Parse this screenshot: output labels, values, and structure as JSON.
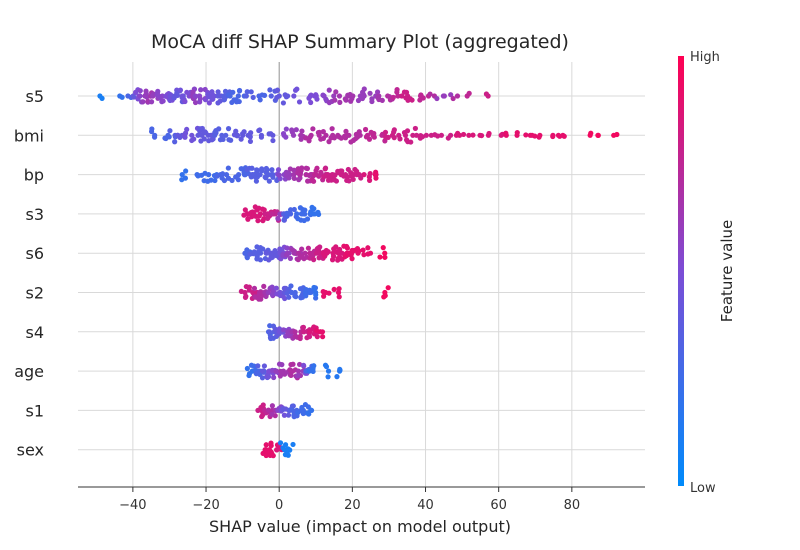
{
  "chart_data": {
    "type": "scatter",
    "subtype": "shap-beeswarm",
    "title": "MoCA diff  SHAP Summary Plot (aggregated)",
    "xlabel": "SHAP value (impact on model output)",
    "ylabel": "",
    "xlim": [
      -55,
      100
    ],
    "xticks": [
      "−40",
      "−20",
      "0",
      "20",
      "40",
      "60",
      "80"
    ],
    "xtick_values": [
      -40,
      -20,
      0,
      20,
      40,
      60,
      80
    ],
    "grid": true,
    "colorbar": {
      "label": "Feature value",
      "high_label": "High",
      "low_label": "Low",
      "low_color": "#008bfb",
      "mid_color": "#7c4dd6",
      "high_color": "#ff0052"
    },
    "features": [
      {
        "name": "s5",
        "points": [
          [
            -48,
            0.1
          ],
          [
            -43,
            0.2
          ],
          [
            -41,
            0.3
          ],
          [
            -40,
            0.4
          ],
          [
            -39,
            0.5
          ],
          [
            -38,
            0.55
          ],
          [
            -37,
            0.6
          ],
          [
            -36,
            0.6
          ],
          [
            -35,
            0.65
          ],
          [
            -34,
            0.6
          ],
          [
            -33,
            0.55
          ],
          [
            -32,
            0.55
          ],
          [
            -31,
            0.5
          ],
          [
            -30,
            0.5
          ],
          [
            -29,
            0.45
          ],
          [
            -28,
            0.4
          ],
          [
            -27,
            0.4
          ],
          [
            -26,
            0.45
          ],
          [
            -25,
            0.5
          ],
          [
            -24,
            0.55
          ],
          [
            -23,
            0.6
          ],
          [
            -22,
            0.55
          ],
          [
            -21,
            0.55
          ],
          [
            -20,
            0.5
          ],
          [
            -19,
            0.45
          ],
          [
            -18,
            0.45
          ],
          [
            -17,
            0.4
          ],
          [
            -16,
            0.4
          ],
          [
            -15,
            0.35
          ],
          [
            -14,
            0.35
          ],
          [
            -13,
            0.3
          ],
          [
            -12,
            0.3
          ],
          [
            -10,
            0.3
          ],
          [
            -8,
            0.35
          ],
          [
            -5,
            0.3
          ],
          [
            -2,
            0.35
          ],
          [
            0,
            0.4
          ],
          [
            2,
            0.4
          ],
          [
            5,
            0.45
          ],
          [
            8,
            0.5
          ],
          [
            10,
            0.5
          ],
          [
            12,
            0.55
          ],
          [
            14,
            0.6
          ],
          [
            16,
            0.65
          ],
          [
            18,
            0.65
          ],
          [
            20,
            0.65
          ],
          [
            22,
            0.6
          ],
          [
            24,
            0.6
          ],
          [
            26,
            0.6
          ],
          [
            28,
            0.65
          ],
          [
            30,
            0.7
          ],
          [
            32,
            0.75
          ],
          [
            34,
            0.8
          ],
          [
            36,
            0.8
          ],
          [
            38,
            0.75
          ],
          [
            40,
            0.75
          ],
          [
            42,
            0.7
          ],
          [
            44,
            0.6
          ],
          [
            46,
            0.6
          ],
          [
            48,
            0.7
          ],
          [
            52,
            0.75
          ],
          [
            57,
            0.8
          ]
        ]
      },
      {
        "name": "bmi",
        "points": [
          [
            -34,
            0.3
          ],
          [
            -31,
            0.3
          ],
          [
            -29,
            0.35
          ],
          [
            -27,
            0.4
          ],
          [
            -25,
            0.45
          ],
          [
            -23,
            0.45
          ],
          [
            -22,
            0.4
          ],
          [
            -21,
            0.4
          ],
          [
            -20,
            0.4
          ],
          [
            -19,
            0.4
          ],
          [
            -18,
            0.35
          ],
          [
            -16,
            0.35
          ],
          [
            -14,
            0.35
          ],
          [
            -12,
            0.4
          ],
          [
            -10,
            0.4
          ],
          [
            -8,
            0.4
          ],
          [
            -5,
            0.4
          ],
          [
            -2,
            0.4
          ],
          [
            2,
            0.55
          ],
          [
            4,
            0.6
          ],
          [
            6,
            0.65
          ],
          [
            8,
            0.7
          ],
          [
            10,
            0.7
          ],
          [
            12,
            0.7
          ],
          [
            14,
            0.7
          ],
          [
            16,
            0.7
          ],
          [
            18,
            0.7
          ],
          [
            20,
            0.7
          ],
          [
            22,
            0.7
          ],
          [
            24,
            0.75
          ],
          [
            26,
            0.75
          ],
          [
            28,
            0.75
          ],
          [
            30,
            0.8
          ],
          [
            32,
            0.8
          ],
          [
            34,
            0.8
          ],
          [
            36,
            0.8
          ],
          [
            38,
            0.8
          ],
          [
            40,
            0.8
          ],
          [
            42,
            0.8
          ],
          [
            44,
            0.8
          ],
          [
            46,
            0.8
          ],
          [
            48,
            0.85
          ],
          [
            50,
            0.85
          ],
          [
            52,
            0.85
          ],
          [
            55,
            0.85
          ],
          [
            58,
            0.85
          ],
          [
            60,
            0.85
          ],
          [
            62,
            0.9
          ],
          [
            65,
            0.9
          ],
          [
            68,
            0.9
          ],
          [
            70,
            0.9
          ],
          [
            72,
            0.9
          ],
          [
            74,
            0.9
          ],
          [
            76,
            0.9
          ],
          [
            78,
            0.9
          ],
          [
            86,
            0.95
          ],
          [
            88,
            0.95
          ],
          [
            92,
            0.95
          ]
        ]
      },
      {
        "name": "bp",
        "points": [
          [
            -26,
            0.2
          ],
          [
            -22,
            0.25
          ],
          [
            -20,
            0.25
          ],
          [
            -18,
            0.25
          ],
          [
            -16,
            0.3
          ],
          [
            -14,
            0.3
          ],
          [
            -12,
            0.3
          ],
          [
            -10,
            0.3
          ],
          [
            -9,
            0.3
          ],
          [
            -8,
            0.35
          ],
          [
            -7,
            0.35
          ],
          [
            -6,
            0.35
          ],
          [
            -5,
            0.35
          ],
          [
            -4,
            0.35
          ],
          [
            -3,
            0.35
          ],
          [
            -2,
            0.35
          ],
          [
            -1,
            0.35
          ],
          [
            0,
            0.5
          ],
          [
            1,
            0.55
          ],
          [
            2,
            0.6
          ],
          [
            3,
            0.6
          ],
          [
            4,
            0.65
          ],
          [
            5,
            0.65
          ],
          [
            6,
            0.7
          ],
          [
            7,
            0.7
          ],
          [
            8,
            0.7
          ],
          [
            9,
            0.7
          ],
          [
            10,
            0.75
          ],
          [
            11,
            0.75
          ],
          [
            12,
            0.75
          ],
          [
            13,
            0.8
          ],
          [
            14,
            0.8
          ],
          [
            15,
            0.8
          ],
          [
            16,
            0.8
          ],
          [
            17,
            0.8
          ],
          [
            18,
            0.8
          ],
          [
            19,
            0.8
          ],
          [
            20,
            0.8
          ],
          [
            22,
            0.8
          ],
          [
            24,
            0.85
          ],
          [
            26,
            0.9
          ]
        ]
      },
      {
        "name": "s3",
        "points": [
          [
            -9,
            0.85
          ],
          [
            -8,
            0.85
          ],
          [
            -7,
            0.85
          ],
          [
            -6,
            0.85
          ],
          [
            -5,
            0.85
          ],
          [
            -4,
            0.85
          ],
          [
            -3,
            0.8
          ],
          [
            -2,
            0.8
          ],
          [
            -1,
            0.75
          ],
          [
            0,
            0.6
          ],
          [
            1,
            0.45
          ],
          [
            2,
            0.35
          ],
          [
            3,
            0.3
          ],
          [
            4,
            0.3
          ],
          [
            5,
            0.25
          ],
          [
            6,
            0.25
          ],
          [
            7,
            0.25
          ],
          [
            8,
            0.25
          ],
          [
            9,
            0.2
          ],
          [
            10,
            0.2
          ]
        ]
      },
      {
        "name": "s6",
        "points": [
          [
            -9,
            0.3
          ],
          [
            -8,
            0.3
          ],
          [
            -7,
            0.35
          ],
          [
            -6,
            0.35
          ],
          [
            -5,
            0.35
          ],
          [
            -4,
            0.35
          ],
          [
            -3,
            0.4
          ],
          [
            -2,
            0.4
          ],
          [
            -1,
            0.4
          ],
          [
            0,
            0.45
          ],
          [
            1,
            0.5
          ],
          [
            2,
            0.55
          ],
          [
            3,
            0.6
          ],
          [
            4,
            0.65
          ],
          [
            5,
            0.65
          ],
          [
            6,
            0.7
          ],
          [
            7,
            0.7
          ],
          [
            8,
            0.75
          ],
          [
            9,
            0.75
          ],
          [
            10,
            0.8
          ],
          [
            11,
            0.8
          ],
          [
            12,
            0.8
          ],
          [
            13,
            0.85
          ],
          [
            14,
            0.85
          ],
          [
            15,
            0.85
          ],
          [
            16,
            0.85
          ],
          [
            17,
            0.85
          ],
          [
            18,
            0.9
          ],
          [
            19,
            0.9
          ],
          [
            20,
            0.9
          ],
          [
            22,
            0.9
          ],
          [
            24,
            0.9
          ],
          [
            28,
            0.95
          ]
        ]
      },
      {
        "name": "s2",
        "points": [
          [
            -10,
            0.8
          ],
          [
            -8,
            0.8
          ],
          [
            -7,
            0.8
          ],
          [
            -6,
            0.7
          ],
          [
            -5,
            0.7
          ],
          [
            -4,
            0.7
          ],
          [
            -3,
            0.65
          ],
          [
            -2,
            0.6
          ],
          [
            -1,
            0.55
          ],
          [
            0,
            0.5
          ],
          [
            1,
            0.45
          ],
          [
            2,
            0.4
          ],
          [
            3,
            0.35
          ],
          [
            4,
            0.3
          ],
          [
            5,
            0.3
          ],
          [
            6,
            0.3
          ],
          [
            7,
            0.3
          ],
          [
            8,
            0.25
          ],
          [
            9,
            0.25
          ],
          [
            10,
            0.2
          ],
          [
            13,
            0.9
          ],
          [
            16,
            0.9
          ],
          [
            29,
            0.95
          ]
        ]
      },
      {
        "name": "s4",
        "points": [
          [
            -3,
            0.3
          ],
          [
            -2,
            0.35
          ],
          [
            -1,
            0.35
          ],
          [
            0,
            0.4
          ],
          [
            1,
            0.45
          ],
          [
            2,
            0.55
          ],
          [
            3,
            0.6
          ],
          [
            4,
            0.65
          ],
          [
            5,
            0.7
          ],
          [
            6,
            0.75
          ],
          [
            7,
            0.8
          ],
          [
            8,
            0.8
          ],
          [
            9,
            0.85
          ],
          [
            10,
            0.85
          ],
          [
            11,
            0.9
          ]
        ]
      },
      {
        "name": "age",
        "points": [
          [
            -8,
            0.2
          ],
          [
            -7,
            0.25
          ],
          [
            -6,
            0.3
          ],
          [
            -5,
            0.35
          ],
          [
            -4,
            0.4
          ],
          [
            -3,
            0.45
          ],
          [
            -2,
            0.5
          ],
          [
            -1,
            0.55
          ],
          [
            0,
            0.6
          ],
          [
            1,
            0.65
          ],
          [
            2,
            0.65
          ],
          [
            3,
            0.7
          ],
          [
            4,
            0.7
          ],
          [
            5,
            0.65
          ],
          [
            6,
            0.6
          ],
          [
            7,
            0.5
          ],
          [
            8,
            0.3
          ],
          [
            9,
            0.2
          ],
          [
            13,
            0.15
          ],
          [
            16,
            0.15
          ]
        ]
      },
      {
        "name": "s1",
        "points": [
          [
            -5,
            0.8
          ],
          [
            -4,
            0.8
          ],
          [
            -3,
            0.75
          ],
          [
            -2,
            0.7
          ],
          [
            -1,
            0.65
          ],
          [
            0,
            0.55
          ],
          [
            1,
            0.45
          ],
          [
            2,
            0.4
          ],
          [
            3,
            0.35
          ],
          [
            4,
            0.3
          ],
          [
            5,
            0.3
          ],
          [
            6,
            0.25
          ],
          [
            7,
            0.25
          ],
          [
            8,
            0.2
          ]
        ]
      },
      {
        "name": "sex",
        "points": [
          [
            -4,
            0.9
          ],
          [
            -3,
            0.9
          ],
          [
            -2,
            0.9
          ],
          [
            -1,
            0.9
          ],
          [
            0,
            0.85
          ],
          [
            1,
            0.1
          ],
          [
            2,
            0.1
          ],
          [
            3,
            0.1
          ]
        ]
      }
    ]
  }
}
